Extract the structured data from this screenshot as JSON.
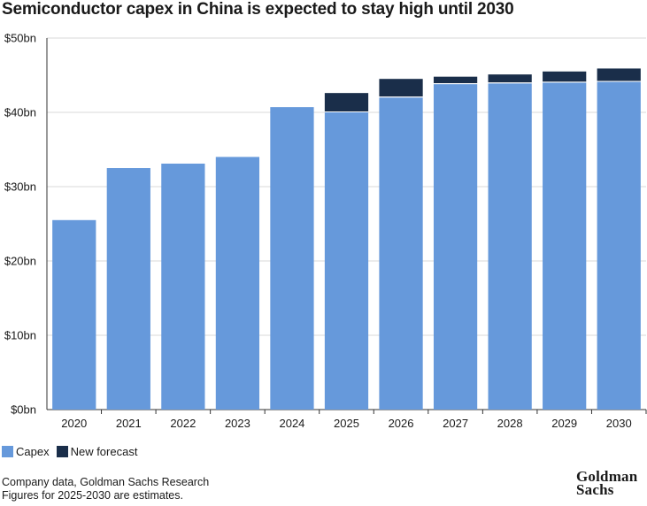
{
  "chart_data": {
    "type": "bar",
    "stacked": true,
    "title": "Semiconductor capex in China is expected to stay high until 2030",
    "categories": [
      "2020",
      "2021",
      "2022",
      "2023",
      "2024",
      "2025",
      "2026",
      "2027",
      "2028",
      "2029",
      "2030"
    ],
    "series": [
      {
        "name": "Capex",
        "color": "#6699db",
        "values": [
          25.5,
          32.5,
          33.1,
          34.0,
          40.7,
          40.0,
          42.0,
          43.8,
          43.9,
          44.0,
          44.1
        ]
      },
      {
        "name": "New forecast",
        "color": "#1a2e4a",
        "values": [
          0,
          0,
          0,
          0,
          0,
          2.6,
          2.5,
          1.0,
          1.2,
          1.5,
          1.8
        ]
      }
    ],
    "yaxis": {
      "ylim": [
        0,
        50
      ],
      "ticks": [
        0,
        10,
        20,
        30,
        40,
        50
      ],
      "tick_labels": [
        "$0bn",
        "$10bn",
        "$20bn",
        "$30bn",
        "$40bn",
        "$50bn"
      ]
    },
    "xlabel": "",
    "ylabel": "",
    "grid": true,
    "legend_position": "bottom-left"
  },
  "legend": {
    "capex_label": "Capex",
    "capex_color": "#6699db",
    "forecast_label": "New forecast",
    "forecast_color": "#1a2e4a"
  },
  "footer": {
    "source_line1": "Company data, Goldman Sachs Research",
    "source_line2": "Figures for 2025-2030 are estimates.",
    "logo_line1": "Goldman",
    "logo_line2": "Sachs"
  }
}
